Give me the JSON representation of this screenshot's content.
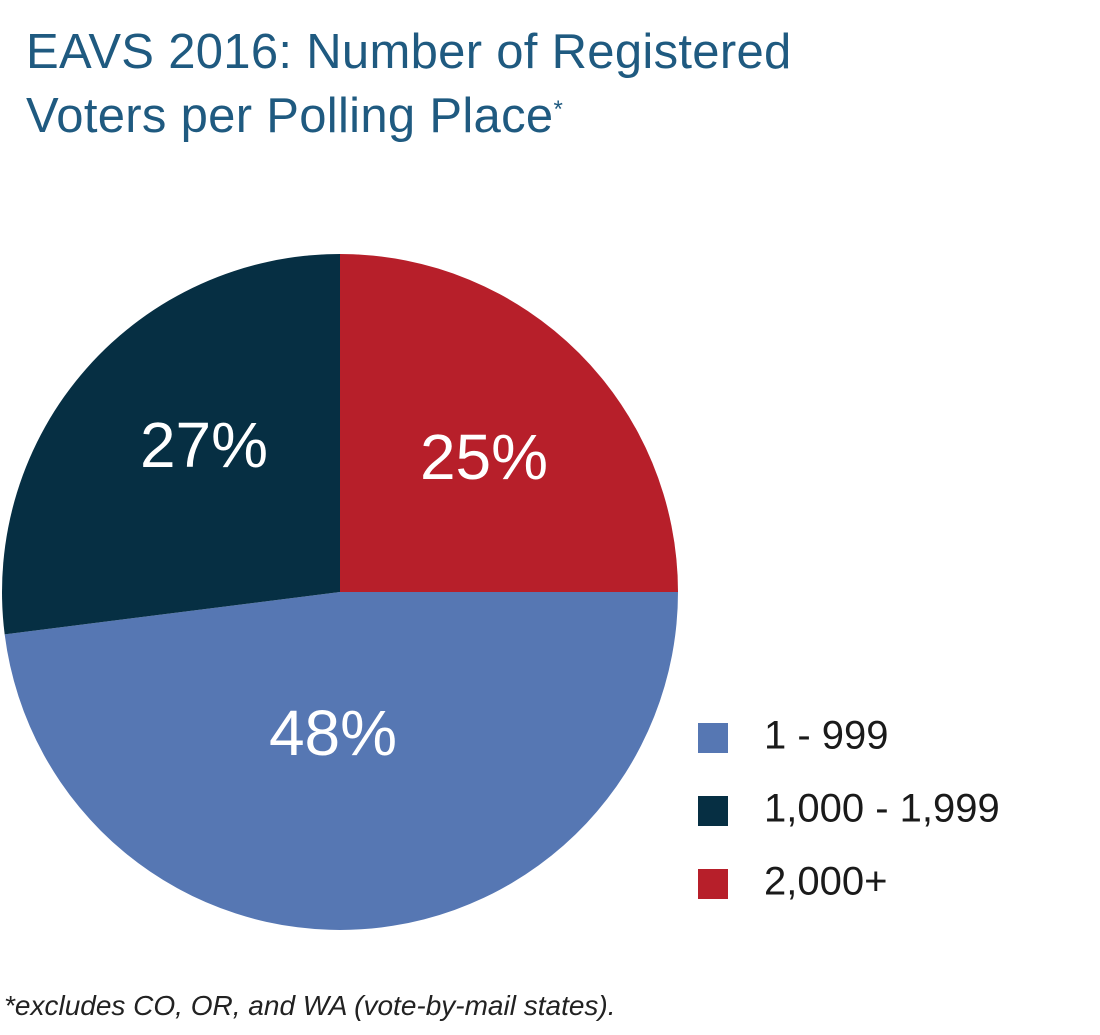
{
  "chart_data": {
    "type": "pie",
    "title_line1": "EAVS 2016: Number of Registered",
    "title_line2": "Voters per Polling Place",
    "title_marker": "*",
    "slices": [
      {
        "name": "1 - 999",
        "value": 48,
        "label": "48%",
        "color": "#5677b3"
      },
      {
        "name": "1,000 - 1,999",
        "value": 27,
        "label": "27%",
        "color": "#062f43"
      },
      {
        "name": "2,000+",
        "value": 25,
        "label": "25%",
        "color": "#b71f2a"
      }
    ],
    "legend": [
      "1 - 999",
      "1,000 - 1,999",
      "2,000+"
    ],
    "legend_position": "bottom-right",
    "footnote": "*excludes CO, OR, and WA (vote-by-mail states)."
  }
}
